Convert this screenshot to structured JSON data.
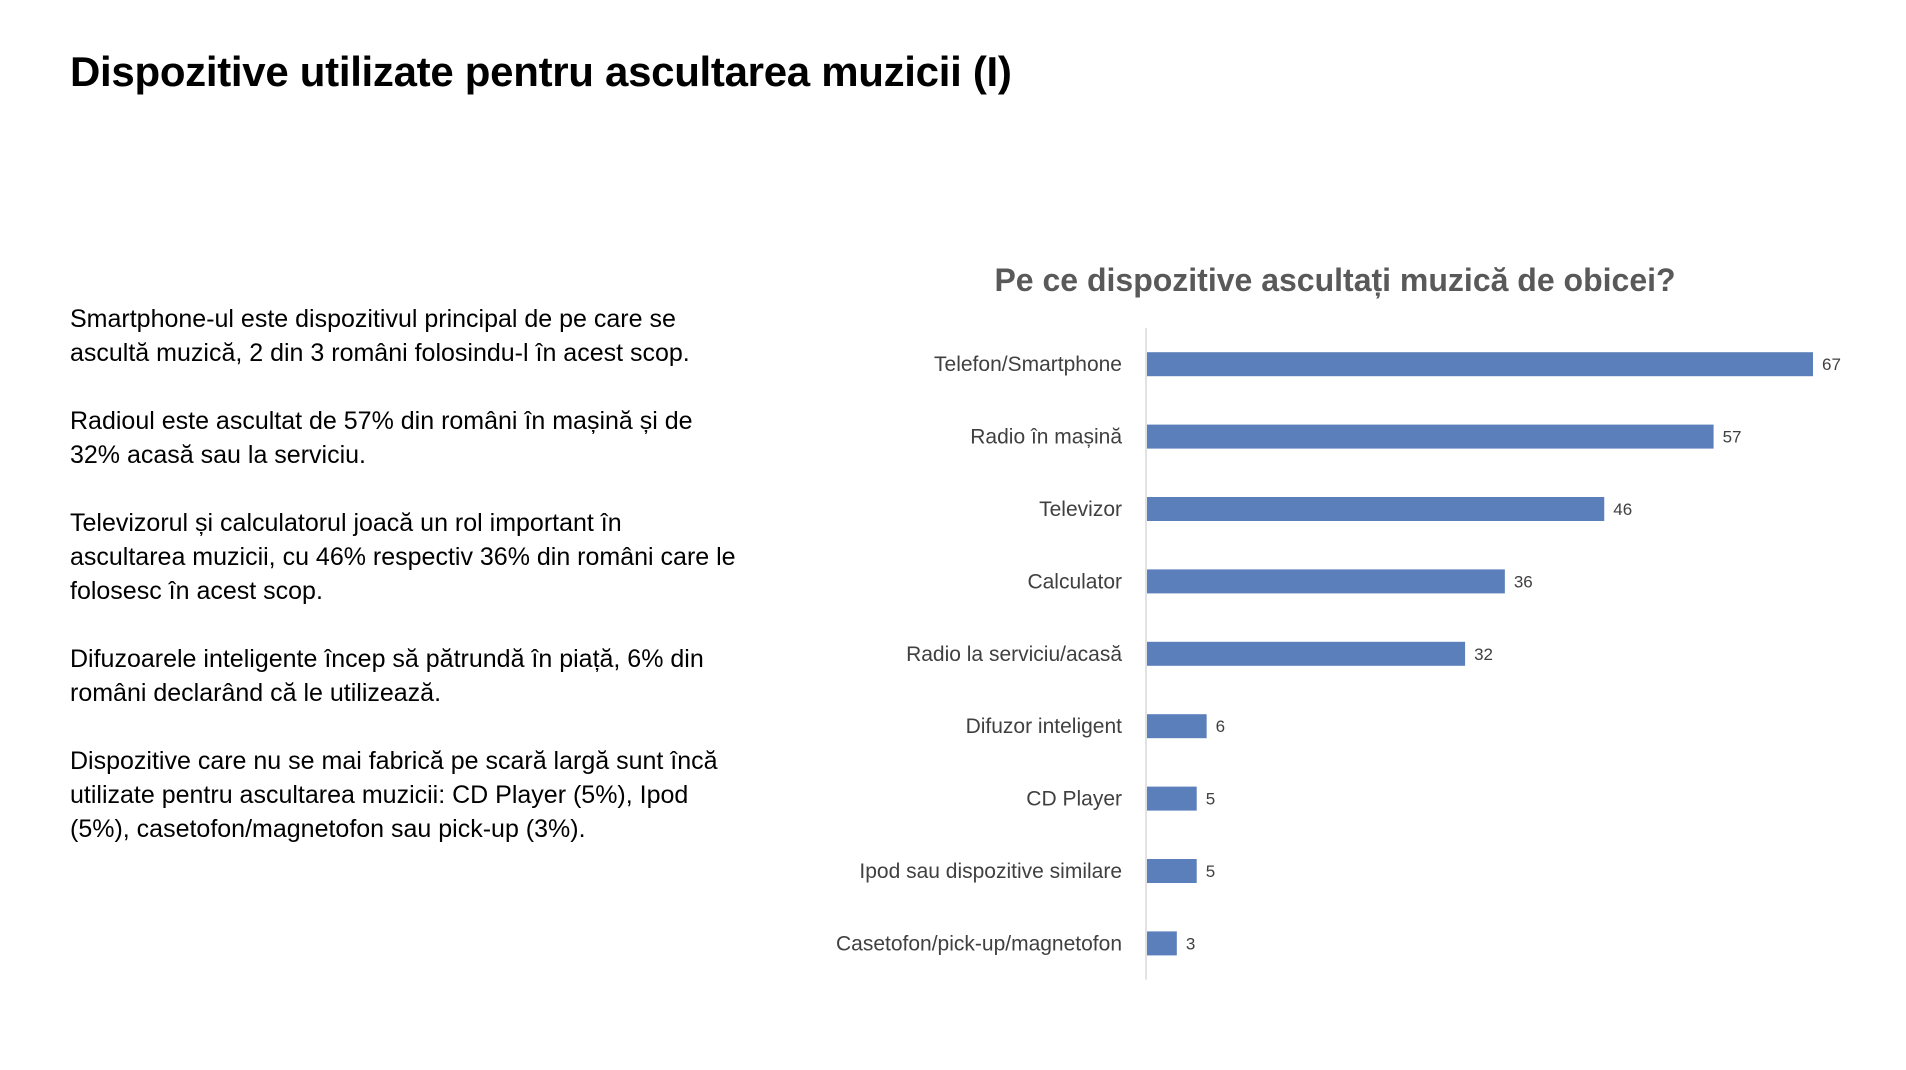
{
  "slide": {
    "title": "Dispozitive utilizate pentru ascultarea muzicii (I)",
    "paragraphs": [
      "Smartphone-ul este dispozitivul principal de pe care se ascultă muzică, 2 din 3 români folosindu-l în acest scop.",
      "Radioul este ascultat de 57% din români în mașină și de 32% acasă sau la serviciu.",
      "Televizorul și calculatorul joacă un rol important în ascultarea muzicii, cu 46% respectiv 36% din români care le folosesc în acest scop.",
      "Difuzoarele inteligente încep să pătrundă în piață, 6% din români declarând că le utilizează.",
      "Dispozitive care nu se mai fabrică pe scară largă sunt încă utilizate pentru ascultarea muzicii: CD Player (5%), Ipod (5%), casetofon/magnetofon sau pick-up (3%)."
    ]
  },
  "chart_data": {
    "type": "bar",
    "orientation": "horizontal",
    "title": "Pe ce dispozitive ascultați muzică de obicei?",
    "categories": [
      "Telefon/Smartphone",
      "Radio în mașină",
      "Televizor",
      "Calculator",
      "Radio la serviciu/acasă",
      "Difuzor inteligent",
      "CD Player",
      "Ipod sau dispozitive similare",
      "Casetofon/pick-up/magnetofon"
    ],
    "values": [
      67,
      57,
      46,
      36,
      32,
      6,
      5,
      5,
      3
    ],
    "xlabel": "",
    "ylabel": "",
    "xlim": [
      0,
      67
    ],
    "grid": false,
    "data_labels": true,
    "bar_color": "#5b7fbb",
    "axis_color": "#d9d9d9"
  }
}
